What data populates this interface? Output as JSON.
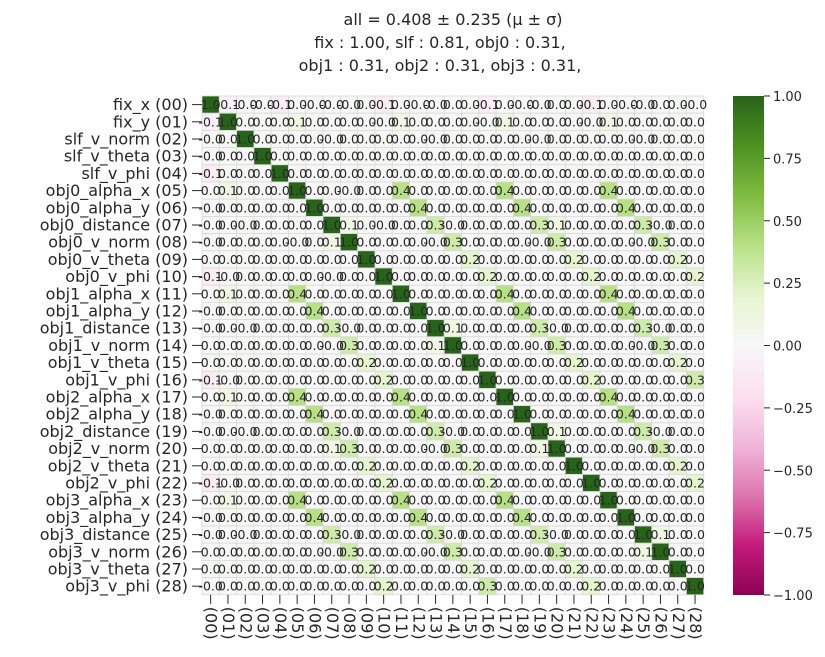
{
  "chart_data": {
    "type": "heatmap",
    "title_lines": [
      "all  =  0.408 ± 0.235  (μ ± σ)",
      "fix :  1.00,     slf :  0.81,     obj0 :  0.31,",
      "obj1 :  0.31,     obj2 :  0.31,     obj3 :  0.31,"
    ],
    "row_labels": [
      "fix_x (00)",
      "fix_y (01)",
      "slf_v_norm (02)",
      "slf_v_theta (03)",
      "slf_v_phi (04)",
      "obj0_alpha_x (05)",
      "obj0_alpha_y (06)",
      "obj0_distance (07)",
      "obj0_v_norm (08)",
      "obj0_v_theta (09)",
      "obj0_v_phi (10)",
      "obj1_alpha_x (11)",
      "obj1_alpha_y (12)",
      "obj1_distance (13)",
      "obj1_v_norm (14)",
      "obj1_v_theta (15)",
      "obj1_v_phi (16)",
      "obj2_alpha_x (17)",
      "obj2_alpha_y (18)",
      "obj2_distance (19)",
      "obj2_v_norm (20)",
      "obj2_v_theta (21)",
      "obj2_v_phi (22)",
      "obj3_alpha_x (23)",
      "obj3_alpha_y (24)",
      "obj3_distance (25)",
      "obj3_v_norm (26)",
      "obj3_v_theta (27)",
      "obj3_v_phi (28)"
    ],
    "col_labels": [
      "(00)",
      "(01)",
      "(02)",
      "(03)",
      "(04)",
      "(05)",
      "(06)",
      "(07)",
      "(08)",
      "(09)",
      "(10)",
      "(11)",
      "(12)",
      "(13)",
      "(14)",
      "(15)",
      "(16)",
      "(17)",
      "(18)",
      "(19)",
      "(20)",
      "(21)",
      "(22)",
      "(23)",
      "(24)",
      "(25)",
      "(26)",
      "(27)",
      "(28)"
    ],
    "values": [
      [
        1.0,
        -0.05,
        -0.01,
        -0.01,
        -0.1,
        0.0,
        -0.01,
        -0.01,
        -0.01,
        0.02,
        -0.1,
        0.0,
        -0.01,
        -0.01,
        0.0,
        0.02,
        -0.1,
        0.0,
        -0.01,
        -0.01,
        0.0,
        0.02,
        -0.1,
        0.0,
        -0.01,
        -0.01,
        0.0,
        0.02,
        -0.01
      ],
      [
        -0.05,
        1.0,
        0.01,
        0.01,
        0.02,
        0.1,
        0.01,
        0.0,
        0.0,
        0.01,
        -0.01,
        0.1,
        0.01,
        0.0,
        0.0,
        0.01,
        -0.01,
        0.1,
        0.01,
        0.0,
        0.0,
        0.01,
        -0.01,
        0.1,
        0.01,
        0.0,
        0.0,
        0.01,
        0.0
      ],
      [
        -0.01,
        0.01,
        1.0,
        0.01,
        0.01,
        0.01,
        0.01,
        -0.01,
        0.01,
        0.01,
        0.01,
        0.01,
        0.01,
        -0.01,
        0.01,
        0.01,
        0.01,
        0.01,
        0.01,
        -0.01,
        0.01,
        0.01,
        0.01,
        0.01,
        0.01,
        -0.01,
        0.01,
        0.01,
        0.01
      ],
      [
        -0.01,
        0.01,
        0.01,
        1.0,
        0.01,
        0.0,
        0.0,
        0.0,
        0.01,
        0.0,
        0.01,
        0.0,
        0.0,
        0.0,
        0.01,
        0.0,
        0.01,
        0.0,
        0.0,
        0.0,
        0.01,
        0.0,
        0.01,
        0.0,
        0.0,
        0.0,
        0.01,
        0.0,
        0.01
      ],
      [
        -0.1,
        0.02,
        0.01,
        0.01,
        1.0,
        0.01,
        0.0,
        0.0,
        0.0,
        0.01,
        0.0,
        0.01,
        0.0,
        0.0,
        0.0,
        0.01,
        0.0,
        0.01,
        0.0,
        0.0,
        0.0,
        0.01,
        0.0,
        0.01,
        0.0,
        0.0,
        0.0,
        0.01,
        0.0
      ],
      [
        0.0,
        0.1,
        0.01,
        0.0,
        0.01,
        1.0,
        0.0,
        0.01,
        -0.01,
        0.0,
        0.0,
        0.4,
        0.01,
        0.0,
        0.0,
        0.0,
        0.0,
        0.4,
        0.0,
        0.0,
        0.0,
        0.0,
        0.0,
        0.4,
        0.0,
        0.0,
        0.0,
        0.0,
        0.0
      ],
      [
        -0.01,
        0.01,
        0.01,
        0.0,
        0.0,
        0.0,
        1.0,
        0.0,
        0.0,
        0.0,
        0.0,
        0.0,
        0.4,
        0.0,
        0.0,
        0.0,
        0.0,
        0.0,
        0.4,
        0.0,
        0.0,
        0.0,
        0.0,
        0.0,
        0.4,
        0.0,
        0.0,
        0.0,
        0.0
      ],
      [
        -0.01,
        0.0,
        -0.01,
        0.0,
        0.0,
        0.01,
        0.0,
        1.0,
        0.1,
        0.0,
        -0.01,
        0.0,
        0.0,
        0.3,
        -0.01,
        0.0,
        0.01,
        0.0,
        0.0,
        0.3,
        0.1,
        0.0,
        0.0,
        0.0,
        0.0,
        0.3,
        -0.01,
        0.0,
        0.0
      ],
      [
        -0.01,
        0.0,
        0.01,
        0.01,
        0.0,
        -0.01,
        0.0,
        0.1,
        1.0,
        0.0,
        0.0,
        0.0,
        0.0,
        -0.01,
        0.3,
        0.0,
        0.0,
        0.0,
        0.0,
        -0.01,
        0.3,
        0.0,
        0.0,
        0.0,
        0.0,
        -0.01,
        0.3,
        0.0,
        0.0
      ],
      [
        0.02,
        0.01,
        0.01,
        0.0,
        0.01,
        0.0,
        0.0,
        0.0,
        0.0,
        1.0,
        0.0,
        0.0,
        0.0,
        0.0,
        0.0,
        0.2,
        0.0,
        0.0,
        0.0,
        0.0,
        0.0,
        0.2,
        0.0,
        0.0,
        0.0,
        0.0,
        0.0,
        0.2,
        0.0
      ],
      [
        -0.1,
        -0.01,
        0.01,
        0.01,
        0.0,
        0.0,
        0.0,
        -0.01,
        0.0,
        0.0,
        1.0,
        0.0,
        0.0,
        0.0,
        0.0,
        0.0,
        0.2,
        0.0,
        0.0,
        0.0,
        0.0,
        0.0,
        0.2,
        0.0,
        0.0,
        0.0,
        0.0,
        0.0,
        0.2
      ],
      [
        0.0,
        0.1,
        0.01,
        0.0,
        0.01,
        0.4,
        0.0,
        0.0,
        0.0,
        0.0,
        0.0,
        1.0,
        0.0,
        0.0,
        0.0,
        0.0,
        0.0,
        0.4,
        0.0,
        0.0,
        0.0,
        0.0,
        0.0,
        0.4,
        0.0,
        0.0,
        0.0,
        0.0,
        0.0
      ],
      [
        -0.01,
        0.01,
        0.01,
        0.0,
        0.0,
        0.01,
        0.4,
        0.0,
        0.0,
        0.0,
        0.0,
        0.0,
        1.0,
        0.0,
        0.0,
        0.0,
        0.0,
        0.0,
        0.4,
        0.0,
        0.0,
        0.0,
        0.0,
        0.0,
        0.4,
        0.0,
        0.0,
        0.0,
        0.0
      ],
      [
        -0.01,
        0.0,
        -0.01,
        0.0,
        0.0,
        0.0,
        0.0,
        0.3,
        -0.01,
        0.0,
        0.0,
        0.0,
        0.0,
        1.0,
        0.1,
        0.0,
        0.0,
        0.0,
        0.0,
        0.3,
        -0.01,
        0.0,
        0.0,
        0.0,
        0.0,
        0.3,
        -0.01,
        0.0,
        0.0
      ],
      [
        0.0,
        0.0,
        0.01,
        0.01,
        0.0,
        0.0,
        0.0,
        -0.01,
        0.3,
        0.0,
        0.0,
        0.0,
        0.0,
        0.1,
        1.0,
        0.0,
        0.0,
        0.0,
        0.0,
        -0.01,
        0.3,
        0.0,
        0.0,
        0.0,
        0.0,
        -0.01,
        0.3,
        0.0,
        0.0
      ],
      [
        0.02,
        0.01,
        0.01,
        0.0,
        0.01,
        0.0,
        0.0,
        0.0,
        0.0,
        0.2,
        0.0,
        0.0,
        0.0,
        0.0,
        0.0,
        1.0,
        0.0,
        0.0,
        0.0,
        0.0,
        0.0,
        0.2,
        0.0,
        0.0,
        0.0,
        0.0,
        0.0,
        0.2,
        0.0
      ],
      [
        -0.1,
        -0.01,
        0.01,
        0.01,
        0.0,
        0.0,
        0.0,
        0.01,
        0.0,
        0.0,
        0.2,
        0.0,
        0.0,
        0.0,
        0.0,
        0.0,
        1.0,
        0.0,
        0.0,
        0.0,
        0.0,
        0.0,
        0.2,
        0.0,
        0.0,
        0.0,
        0.0,
        0.0,
        0.3
      ],
      [
        0.0,
        0.1,
        0.01,
        0.0,
        0.01,
        0.4,
        0.0,
        0.0,
        0.0,
        0.0,
        0.0,
        0.4,
        0.0,
        0.0,
        0.0,
        0.0,
        0.0,
        1.0,
        0.0,
        0.0,
        0.0,
        0.0,
        0.0,
        0.4,
        0.0,
        0.0,
        0.0,
        0.0,
        0.0
      ],
      [
        -0.01,
        0.01,
        0.01,
        0.0,
        0.0,
        0.0,
        0.4,
        0.0,
        0.0,
        0.0,
        0.0,
        0.0,
        0.4,
        0.0,
        0.0,
        0.0,
        0.0,
        0.0,
        1.0,
        0.0,
        0.0,
        0.0,
        0.0,
        0.0,
        0.4,
        0.0,
        0.0,
        0.0,
        0.0
      ],
      [
        -0.01,
        0.0,
        -0.01,
        0.0,
        0.0,
        0.0,
        0.0,
        0.3,
        -0.01,
        0.0,
        0.0,
        0.0,
        0.0,
        0.3,
        -0.01,
        0.0,
        0.0,
        0.0,
        0.0,
        1.0,
        0.1,
        0.0,
        0.0,
        0.0,
        0.0,
        0.3,
        -0.01,
        0.0,
        0.0
      ],
      [
        0.0,
        0.0,
        0.01,
        0.01,
        0.0,
        0.0,
        0.0,
        0.1,
        0.3,
        0.0,
        0.0,
        0.0,
        0.0,
        -0.01,
        0.3,
        0.0,
        0.0,
        0.0,
        0.0,
        0.1,
        1.0,
        0.0,
        0.0,
        0.0,
        0.0,
        -0.01,
        0.3,
        0.0,
        0.0
      ],
      [
        0.02,
        0.01,
        0.01,
        0.0,
        0.01,
        0.0,
        0.0,
        0.0,
        0.0,
        0.2,
        0.0,
        0.0,
        0.0,
        0.0,
        0.0,
        0.2,
        0.0,
        0.0,
        0.0,
        0.0,
        0.0,
        1.0,
        0.0,
        0.0,
        0.0,
        0.0,
        0.0,
        0.2,
        0.0
      ],
      [
        -0.1,
        -0.01,
        0.01,
        0.01,
        0.0,
        0.0,
        0.0,
        0.0,
        0.0,
        0.0,
        0.2,
        0.0,
        0.0,
        0.0,
        0.0,
        0.0,
        0.2,
        0.0,
        0.0,
        0.0,
        0.0,
        0.0,
        1.0,
        0.0,
        0.0,
        0.0,
        0.0,
        0.0,
        0.2
      ],
      [
        0.0,
        0.1,
        0.01,
        0.0,
        0.01,
        0.4,
        0.0,
        0.0,
        0.0,
        0.0,
        0.0,
        0.4,
        0.0,
        0.0,
        0.0,
        0.0,
        0.0,
        0.4,
        0.0,
        0.0,
        0.0,
        0.0,
        0.0,
        1.0,
        0.0,
        0.0,
        0.0,
        0.0,
        0.0
      ],
      [
        -0.01,
        0.01,
        0.01,
        0.0,
        0.0,
        0.0,
        0.4,
        0.0,
        0.0,
        0.0,
        0.0,
        0.0,
        0.4,
        0.0,
        0.0,
        0.0,
        0.0,
        0.0,
        0.4,
        0.0,
        0.0,
        0.0,
        0.0,
        0.0,
        1.0,
        0.0,
        0.0,
        0.0,
        0.0
      ],
      [
        -0.01,
        0.0,
        -0.01,
        0.0,
        0.0,
        0.0,
        0.0,
        0.3,
        -0.01,
        0.0,
        0.0,
        0.0,
        0.0,
        0.3,
        -0.01,
        0.0,
        0.0,
        0.0,
        0.0,
        0.3,
        -0.01,
        0.0,
        0.0,
        0.0,
        0.0,
        1.0,
        0.1,
        0.0,
        0.0
      ],
      [
        0.0,
        0.0,
        0.01,
        0.01,
        0.0,
        0.0,
        0.0,
        -0.01,
        0.3,
        0.0,
        0.0,
        0.0,
        0.0,
        -0.01,
        0.3,
        0.0,
        0.0,
        0.0,
        0.0,
        -0.01,
        0.3,
        0.0,
        0.0,
        0.0,
        0.0,
        0.1,
        1.0,
        0.0,
        0.0
      ],
      [
        0.02,
        0.01,
        0.01,
        0.0,
        0.01,
        0.0,
        0.0,
        0.0,
        0.0,
        0.2,
        0.0,
        0.0,
        0.0,
        0.0,
        0.0,
        0.2,
        0.0,
        0.0,
        0.0,
        0.0,
        0.0,
        0.2,
        0.0,
        0.0,
        0.0,
        0.0,
        0.0,
        1.0,
        0.0
      ],
      [
        -0.01,
        0.0,
        0.01,
        0.01,
        0.0,
        0.0,
        0.0,
        0.0,
        0.0,
        0.0,
        0.2,
        0.0,
        0.0,
        0.0,
        0.0,
        0.0,
        0.3,
        0.0,
        0.0,
        0.0,
        0.0,
        0.0,
        0.2,
        0.0,
        0.0,
        0.0,
        0.0,
        0.0,
        1.0
      ]
    ],
    "vmin": -1.0,
    "vmax": 1.0,
    "colormap": "PiYG",
    "colorbar": {
      "ticks": [
        1.0,
        0.75,
        0.5,
        0.25,
        0.0,
        -0.25,
        -0.5,
        -0.75,
        -1.0
      ],
      "tick_labels": [
        "1.00",
        "0.75",
        "0.50",
        "0.25",
        "0.00",
        "−0.25",
        "−0.50",
        "−0.75",
        "−1.00"
      ],
      "placement": "right"
    },
    "grid": true,
    "annotated": true
  }
}
